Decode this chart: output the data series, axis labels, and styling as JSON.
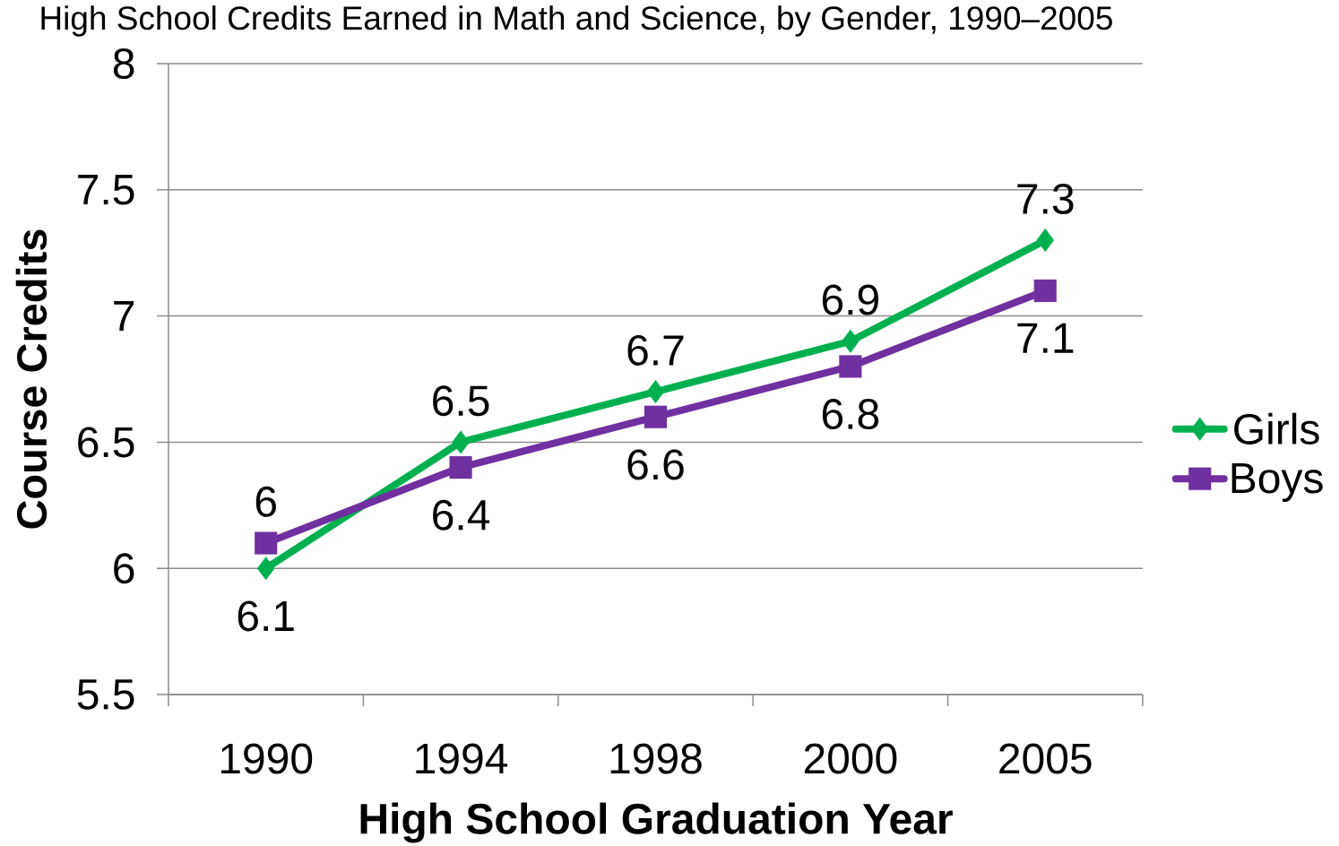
{
  "chart_data": {
    "type": "line",
    "title": "High School Credits Earned in Math and Science, by Gender, 1990–2005",
    "xlabel": "High School Graduation Year",
    "ylabel": "Course Credits",
    "categories": [
      "1990",
      "1994",
      "1998",
      "2000",
      "2005"
    ],
    "series": [
      {
        "name": "Girls",
        "color": "#00b050",
        "marker": "diamond",
        "values": [
          6,
          6.5,
          6.7,
          6.9,
          7.3
        ]
      },
      {
        "name": "Boys",
        "color": "#7030a0",
        "marker": "square",
        "values": [
          6.1,
          6.4,
          6.6,
          6.8,
          7.1
        ]
      }
    ],
    "ylim": [
      5.5,
      8
    ],
    "yticks": [
      5.5,
      6,
      6.5,
      7,
      7.5,
      8
    ],
    "grid": "y",
    "legend": "right",
    "data_labels": true
  }
}
